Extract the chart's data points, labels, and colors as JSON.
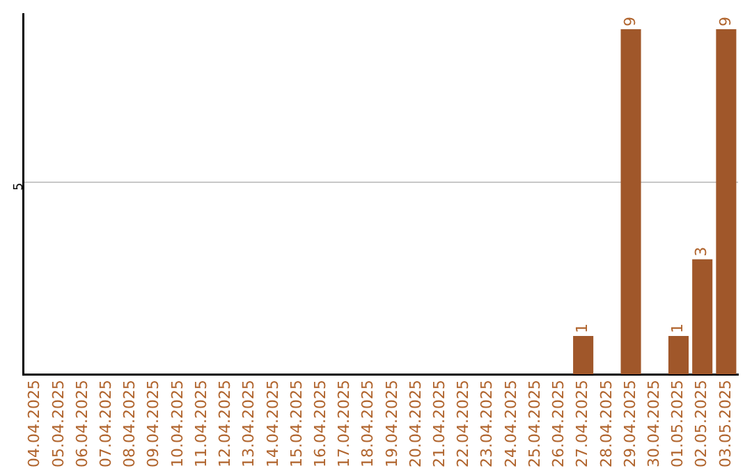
{
  "chart_data": {
    "type": "bar",
    "categories": [
      "04.04.2025",
      "05.04.2025",
      "06.04.2025",
      "07.04.2025",
      "08.04.2025",
      "09.04.2025",
      "10.04.2025",
      "11.04.2025",
      "12.04.2025",
      "13.04.2025",
      "14.04.2025",
      "15.04.2025",
      "16.04.2025",
      "17.04.2025",
      "18.04.2025",
      "19.04.2025",
      "20.04.2025",
      "21.04.2025",
      "22.04.2025",
      "23.04.2025",
      "24.04.2025",
      "25.04.2025",
      "26.04.2025",
      "27.04.2025",
      "28.04.2025",
      "29.04.2025",
      "30.04.2025",
      "01.05.2025",
      "02.05.2025",
      "03.05.2025"
    ],
    "values": [
      null,
      null,
      null,
      null,
      null,
      null,
      null,
      null,
      null,
      null,
      null,
      null,
      null,
      null,
      null,
      null,
      null,
      null,
      null,
      null,
      null,
      null,
      null,
      1,
      null,
      9,
      null,
      1,
      3,
      9
    ],
    "data_labels": true,
    "color": "#a0572a",
    "ylim": [
      0,
      9.4
    ],
    "yticks": [
      5
    ],
    "grid": "y",
    "legend": false
  }
}
